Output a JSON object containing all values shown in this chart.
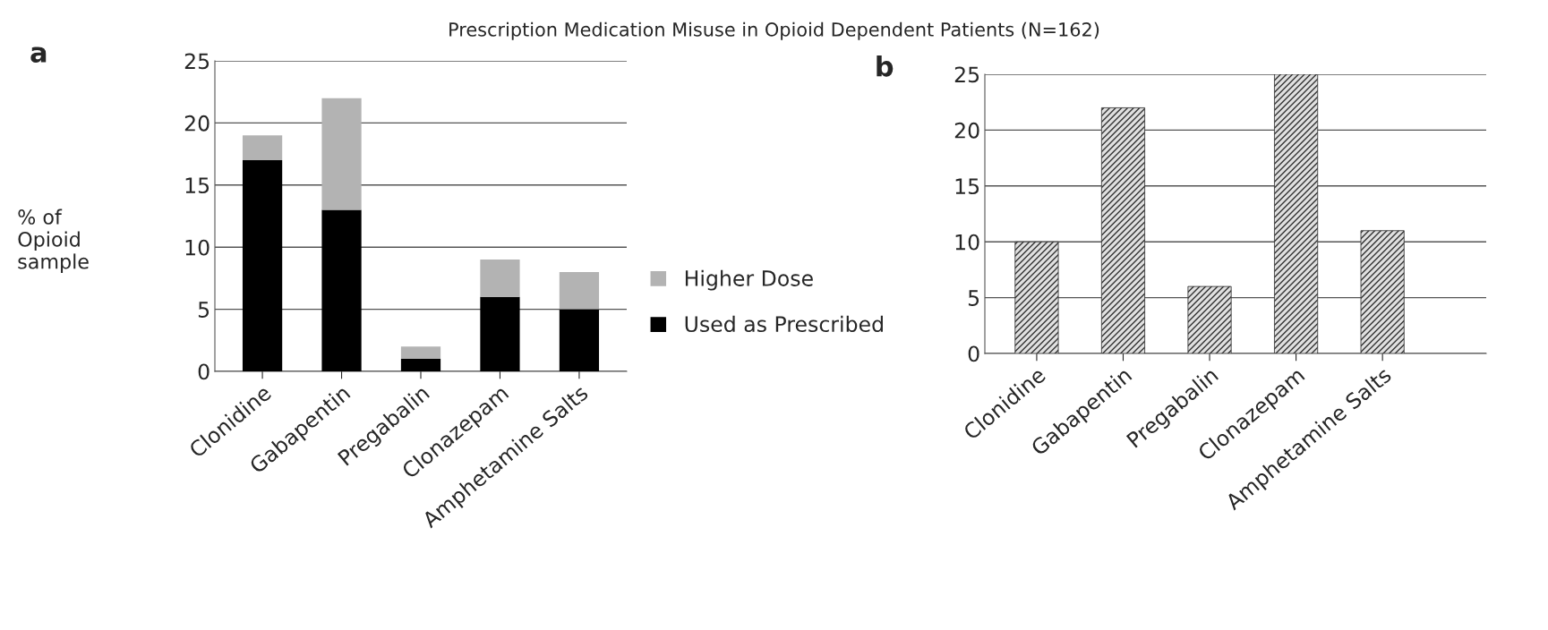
{
  "chart_data": [
    {
      "type": "bar",
      "title": "Prescription Medication Misuse in Opioid Dependent Patients (N=162)",
      "ylabel": "% of\nOpioid\nsample",
      "annotations": [
        "a"
      ],
      "stacked": true,
      "categories": [
        "Clonidine",
        "Gabapentin",
        "Pregabalin",
        "Clonazepam",
        "Amphetamine Salts"
      ],
      "series": [
        {
          "name": "Used as Prescribed",
          "color": "#000000",
          "values": [
            17,
            13,
            1,
            6,
            5
          ]
        },
        {
          "name": "Higher Dose",
          "color": "#b3b3b3",
          "values": [
            2,
            9,
            1,
            3,
            3
          ]
        }
      ],
      "ylim": [
        0,
        25
      ],
      "yticks": [
        0,
        5,
        10,
        15,
        20,
        25
      ],
      "grid": "y",
      "legend": "right"
    },
    {
      "type": "bar",
      "annotations": [
        "b"
      ],
      "categories": [
        "Clonidine",
        "Gabapentin",
        "Pregabalin",
        "Clonazepam",
        "Amphetamine Salts"
      ],
      "series": [
        {
          "color": "#333333",
          "values": [
            10,
            22,
            6,
            25,
            11
          ]
        }
      ],
      "ylim": [
        0,
        25
      ],
      "yticks": [
        0,
        5,
        10,
        15,
        20,
        25
      ],
      "grid": "y"
    }
  ]
}
